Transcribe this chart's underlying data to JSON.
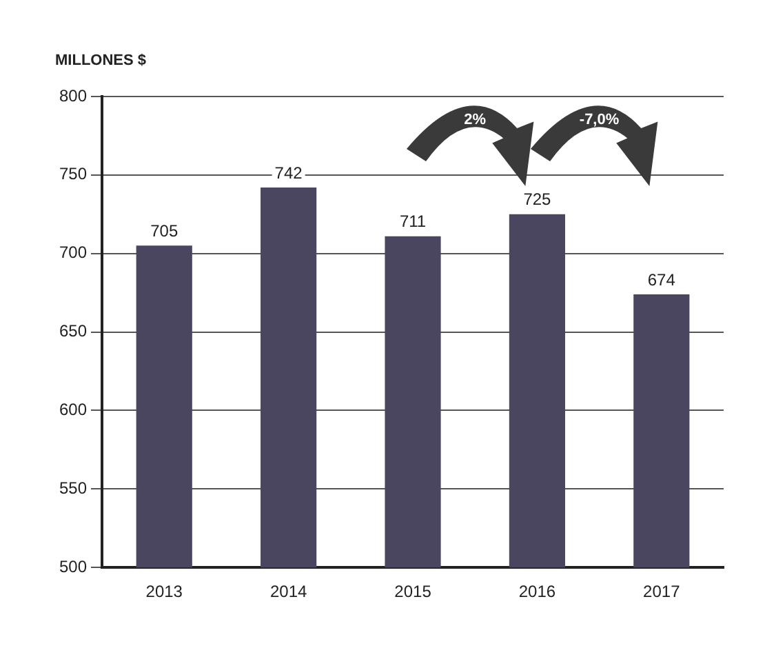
{
  "chart_data": {
    "type": "bar",
    "ylabel": "MILLONES $",
    "categories": [
      "2013",
      "2014",
      "2015",
      "2016",
      "2017"
    ],
    "values": [
      705,
      742,
      711,
      725,
      674
    ],
    "color": "#4a4660",
    "ylim": [
      500,
      800
    ],
    "yticks": [
      500,
      550,
      600,
      650,
      700,
      750,
      800
    ],
    "grid": "y",
    "data_labels": true,
    "legend": false,
    "annotations": [
      "2%",
      "-7,0%"
    ]
  }
}
